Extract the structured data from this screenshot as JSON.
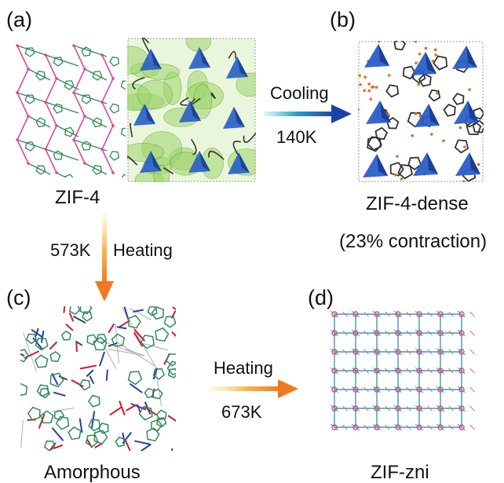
{
  "panels": {
    "a": {
      "label": "(a)",
      "caption": "ZIF-4"
    },
    "b": {
      "label": "(b)",
      "caption": "ZIF-4-dense",
      "note": "(23% contraction)"
    },
    "c": {
      "label": "(c)",
      "caption": "Amorphous"
    },
    "d": {
      "label": "(d)",
      "caption": "ZIF-zni"
    }
  },
  "arrows": {
    "cooling": {
      "label": "Cooling",
      "temperature": "140K",
      "color": "#1f3fa8"
    },
    "heating_down": {
      "label": "Heating",
      "temperature": "573K",
      "color": "#f07820"
    },
    "heating_right": {
      "label": "Heating",
      "temperature": "673K",
      "color": "#f07820"
    }
  },
  "colors": {
    "linker_green": "#2d8a5a",
    "metal_pink": "#e0409a",
    "tetra_blue": "#2a5fc8",
    "oxygen_orange": "#e07020",
    "bond_gray": "#333333",
    "amorphous_red": "#c81e28",
    "amorphous_blue": "#2a3fa0",
    "pore_green": "#9ed46a"
  }
}
